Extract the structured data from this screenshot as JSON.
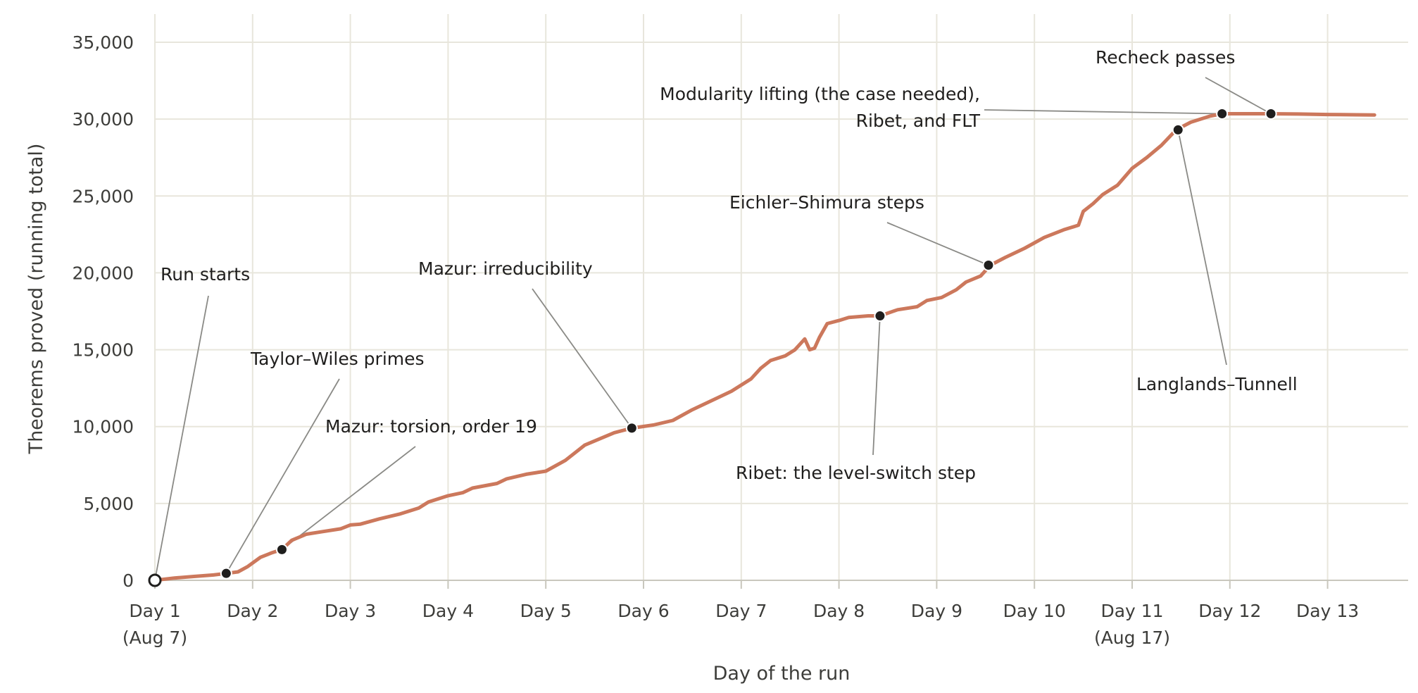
{
  "chart_data": {
    "type": "line",
    "title": "",
    "xlabel": "Day of the run",
    "ylabel": "Theorems proved (running total)",
    "xlim": [
      1,
      13.5
    ],
    "ylim": [
      0,
      35000
    ],
    "grid": true,
    "x_ticks": [
      {
        "x": 1,
        "label": "Day 1",
        "sub": "(Aug 7)"
      },
      {
        "x": 2,
        "label": "Day 2",
        "sub": ""
      },
      {
        "x": 3,
        "label": "Day 3",
        "sub": ""
      },
      {
        "x": 4,
        "label": "Day 4",
        "sub": ""
      },
      {
        "x": 5,
        "label": "Day 5",
        "sub": ""
      },
      {
        "x": 6,
        "label": "Day 6",
        "sub": ""
      },
      {
        "x": 7,
        "label": "Day 7",
        "sub": ""
      },
      {
        "x": 8,
        "label": "Day 8",
        "sub": ""
      },
      {
        "x": 9,
        "label": "Day 9",
        "sub": ""
      },
      {
        "x": 10,
        "label": "Day 10",
        "sub": ""
      },
      {
        "x": 11,
        "label": "Day 11",
        "sub": "(Aug 17)"
      },
      {
        "x": 12,
        "label": "Day 12",
        "sub": ""
      },
      {
        "x": 13,
        "label": "Day 13",
        "sub": ""
      }
    ],
    "y_ticks": [
      {
        "y": 0,
        "label": "0"
      },
      {
        "y": 5000,
        "label": "5,000"
      },
      {
        "y": 10000,
        "label": "10,000"
      },
      {
        "y": 15000,
        "label": "15,000"
      },
      {
        "y": 20000,
        "label": "20,000"
      },
      {
        "y": 25000,
        "label": "25,000"
      },
      {
        "y": 30000,
        "label": "30,000"
      },
      {
        "y": 35000,
        "label": "35,000"
      }
    ],
    "series": [
      {
        "name": "",
        "color": "#cc785c",
        "points": [
          [
            1.0,
            0
          ],
          [
            1.2,
            150
          ],
          [
            1.4,
            250
          ],
          [
            1.6,
            350
          ],
          [
            1.73,
            450
          ],
          [
            1.85,
            550
          ],
          [
            1.95,
            900
          ],
          [
            2.08,
            1500
          ],
          [
            2.2,
            1800
          ],
          [
            2.3,
            2000
          ],
          [
            2.4,
            2600
          ],
          [
            2.55,
            3000
          ],
          [
            2.7,
            3150
          ],
          [
            2.9,
            3350
          ],
          [
            3.0,
            3600
          ],
          [
            3.1,
            3650
          ],
          [
            3.3,
            4000
          ],
          [
            3.5,
            4300
          ],
          [
            3.7,
            4700
          ],
          [
            3.8,
            5100
          ],
          [
            4.0,
            5500
          ],
          [
            4.15,
            5700
          ],
          [
            4.25,
            6000
          ],
          [
            4.5,
            6300
          ],
          [
            4.6,
            6600
          ],
          [
            4.8,
            6900
          ],
          [
            5.0,
            7100
          ],
          [
            5.2,
            7800
          ],
          [
            5.4,
            8800
          ],
          [
            5.55,
            9200
          ],
          [
            5.7,
            9600
          ],
          [
            5.88,
            9900
          ],
          [
            6.1,
            10100
          ],
          [
            6.3,
            10400
          ],
          [
            6.5,
            11100
          ],
          [
            6.7,
            11700
          ],
          [
            6.9,
            12300
          ],
          [
            7.1,
            13100
          ],
          [
            7.2,
            13800
          ],
          [
            7.3,
            14300
          ],
          [
            7.45,
            14600
          ],
          [
            7.55,
            15000
          ],
          [
            7.65,
            15700
          ],
          [
            7.7,
            15000
          ],
          [
            7.75,
            15100
          ],
          [
            7.8,
            15800
          ],
          [
            7.88,
            16700
          ],
          [
            8.0,
            16900
          ],
          [
            8.1,
            17100
          ],
          [
            8.3,
            17200
          ],
          [
            8.42,
            17200
          ],
          [
            8.6,
            17600
          ],
          [
            8.8,
            17800
          ],
          [
            8.9,
            18200
          ],
          [
            9.05,
            18400
          ],
          [
            9.2,
            18900
          ],
          [
            9.3,
            19400
          ],
          [
            9.45,
            19800
          ],
          [
            9.55,
            20500
          ],
          [
            9.7,
            21000
          ],
          [
            9.9,
            21600
          ],
          [
            10.1,
            22300
          ],
          [
            10.3,
            22800
          ],
          [
            10.45,
            23100
          ],
          [
            10.5,
            24000
          ],
          [
            10.6,
            24500
          ],
          [
            10.7,
            25100
          ],
          [
            10.85,
            25700
          ],
          [
            11.0,
            26800
          ],
          [
            11.15,
            27500
          ],
          [
            11.3,
            28300
          ],
          [
            11.45,
            29300
          ],
          [
            11.6,
            29800
          ],
          [
            11.8,
            30200
          ],
          [
            11.92,
            30350
          ],
          [
            12.1,
            30350
          ],
          [
            12.4,
            30350
          ],
          [
            12.7,
            30330
          ],
          [
            13.0,
            30300
          ],
          [
            13.3,
            30280
          ],
          [
            13.48,
            30270
          ]
        ]
      }
    ],
    "annotations": [
      {
        "label": "Run starts",
        "x": 1.0,
        "y": 0,
        "hollow": true
      },
      {
        "label": "Taylor–Wiles primes",
        "x": 1.73,
        "y": 450
      },
      {
        "label": "Mazur: torsion, order 19",
        "x": 2.3,
        "y": 2000
      },
      {
        "label": "Mazur: irreducibility",
        "x": 5.88,
        "y": 9900
      },
      {
        "label": "Ribet: the level-switch step",
        "x": 8.42,
        "y": 17200
      },
      {
        "label": "Eichler–Shimura steps",
        "x": 9.53,
        "y": 20500
      },
      {
        "label": "Langlands–Tunnell",
        "x": 11.47,
        "y": 29300
      },
      {
        "label": "Modularity lifting (the case needed),",
        "label2": "Ribet, and FLT",
        "x": 11.92,
        "y": 30350
      },
      {
        "label": "Recheck passes",
        "x": 12.42,
        "y": 30350
      }
    ]
  }
}
